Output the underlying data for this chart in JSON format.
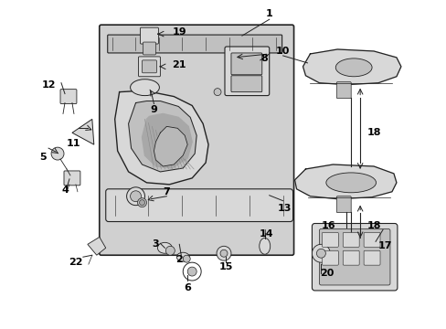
{
  "bg_color": "#ffffff",
  "fig_width": 4.89,
  "fig_height": 3.6,
  "dpi": 100,
  "line_color": "#222222",
  "fill_light": "#d8d8d8",
  "fill_mid": "#c0c0c0",
  "fill_dark": "#a8a8a8"
}
